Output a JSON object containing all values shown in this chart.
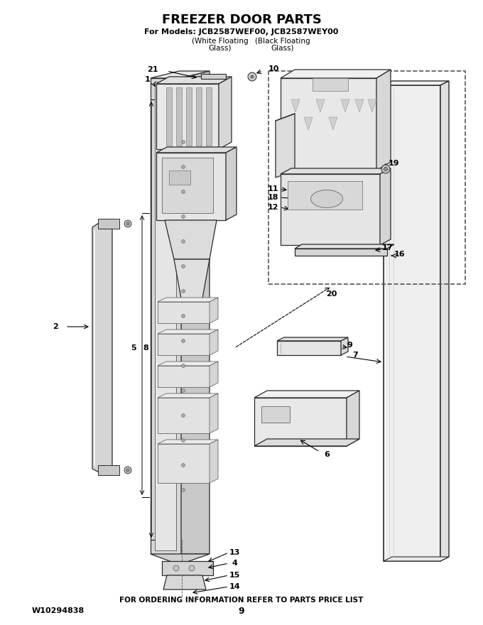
{
  "title_line1": "FREEZER DOOR PARTS",
  "title_line2": "For Models: JCB2587WEF00, JCB2587WEY00",
  "title_line3_a": "(White Floating",
  "title_line3_b": "(Black Floating",
  "title_line4_a": "Glass)",
  "title_line4_b": "Glass)",
  "footer_left": "W10294838",
  "footer_center": "FOR ORDERING INFORMATION REFER TO PARTS PRICE LIST",
  "footer_page": "9",
  "bg_color": "#ffffff"
}
